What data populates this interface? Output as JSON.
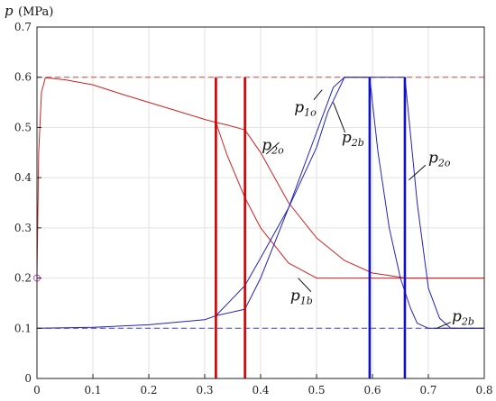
{
  "chart_data": {
    "type": "line",
    "ylabel": "p",
    "yunit": "(MPa)",
    "xlim": [
      0,
      0.8
    ],
    "ylim": [
      0,
      0.7
    ],
    "xticks": [
      0,
      0.1,
      0.2,
      0.3,
      0.4,
      0.5,
      0.6,
      0.7,
      0.8
    ],
    "yticks": [
      0,
      0.1,
      0.2,
      0.3,
      0.4,
      0.5,
      0.6,
      0.7
    ],
    "xtick_labels": [
      "0",
      "0.1",
      "0.2",
      "0.3",
      "0.4",
      "0.5",
      "0.6",
      "0.7",
      "0.8"
    ],
    "ytick_labels": [
      "0",
      "0.1",
      "0.2",
      "0.3",
      "0.4",
      "0.5",
      "0.6",
      "0.7"
    ],
    "grid": true,
    "colors": {
      "red": "#cc2222",
      "blue": "#2222bb",
      "grid": "#e2e2e2"
    },
    "reference_lines": [
      {
        "y": 0.6,
        "style": "dashed",
        "color": "#dd4444"
      },
      {
        "y": 0.1,
        "style": "dashed",
        "color": "#4444cc"
      }
    ],
    "vertical_markers": [
      {
        "x": 0.32,
        "color": "#cc0000"
      },
      {
        "x": 0.372,
        "color": "#cc0000"
      },
      {
        "x": 0.595,
        "color": "#1111cc"
      },
      {
        "x": 0.658,
        "color": "#1111cc"
      }
    ],
    "start_marker": {
      "x": 0,
      "y": 0.2,
      "color": "#cc44cc"
    },
    "series": [
      {
        "color": "#cc2222",
        "x": [
          0,
          0.003,
          0.008,
          0.015,
          0.05,
          0.1,
          0.15,
          0.2,
          0.25,
          0.3,
          0.32,
          0.34,
          0.372,
          0.4,
          0.45,
          0.5,
          0.55,
          0.6,
          0.63,
          0.66,
          0.8
        ],
        "y": [
          0.2,
          0.45,
          0.57,
          0.599,
          0.595,
          0.585,
          0.567,
          0.55,
          0.533,
          0.516,
          0.51,
          0.505,
          0.495,
          0.45,
          0.35,
          0.28,
          0.235,
          0.21,
          0.205,
          0.2,
          0.2
        ]
      },
      {
        "color": "#cc2222",
        "x": [
          0.32,
          0.34,
          0.372,
          0.4,
          0.45,
          0.5,
          0.8
        ],
        "y": [
          0.51,
          0.445,
          0.36,
          0.3,
          0.23,
          0.2,
          0.2
        ]
      },
      {
        "color": "#2222bb",
        "x": [
          0,
          0.1,
          0.2,
          0.3,
          0.32,
          0.372,
          0.4,
          0.45,
          0.5,
          0.53,
          0.55,
          0.595,
          0.658,
          0.68,
          0.7,
          0.72,
          0.74,
          0.8
        ],
        "y": [
          0.1,
          0.102,
          0.107,
          0.117,
          0.125,
          0.138,
          0.2,
          0.34,
          0.49,
          0.58,
          0.6,
          0.6,
          0.6,
          0.35,
          0.18,
          0.12,
          0.1,
          0.1
        ]
      },
      {
        "color": "#2222bb",
        "x": [
          0.32,
          0.372,
          0.4,
          0.45,
          0.5,
          0.52,
          0.55,
          0.595,
          0.61,
          0.63,
          0.65,
          0.668,
          0.68,
          0.7,
          0.72,
          0.8
        ],
        "y": [
          0.125,
          0.185,
          0.24,
          0.34,
          0.46,
          0.53,
          0.6,
          0.6,
          0.45,
          0.3,
          0.2,
          0.14,
          0.11,
          0.1,
          0.1,
          0.1
        ]
      }
    ],
    "annotations": [
      {
        "main": "p",
        "sub": "2o",
        "x": 0.402,
        "y": 0.455,
        "lx1": 0.41,
        "ly1": 0.447,
        "lx2": 0.433,
        "ly2": 0.47
      },
      {
        "main": "p",
        "sub": "2b",
        "x": 0.545,
        "y": 0.47,
        "lx1": 0.53,
        "ly1": 0.55,
        "lx2": 0.551,
        "ly2": 0.49
      },
      {
        "main": "p",
        "sub": "1o",
        "x": 0.46,
        "y": 0.53,
        "lx1": 0.495,
        "ly1": 0.555,
        "lx2": 0.51,
        "ly2": 0.575
      },
      {
        "main": "p",
        "sub": "1b",
        "x": 0.453,
        "y": 0.155,
        "lx1": 0.49,
        "ly1": 0.173,
        "lx2": 0.467,
        "ly2": 0.2
      },
      {
        "main": "p",
        "sub": "2o",
        "x": 0.7,
        "y": 0.43,
        "lx1": 0.695,
        "ly1": 0.425,
        "lx2": 0.665,
        "ly2": 0.395
      },
      {
        "main": "p",
        "sub": "2b",
        "x": 0.742,
        "y": 0.114,
        "lx1": 0.74,
        "ly1": 0.112,
        "lx2": 0.715,
        "ly2": 0.1
      }
    ]
  }
}
